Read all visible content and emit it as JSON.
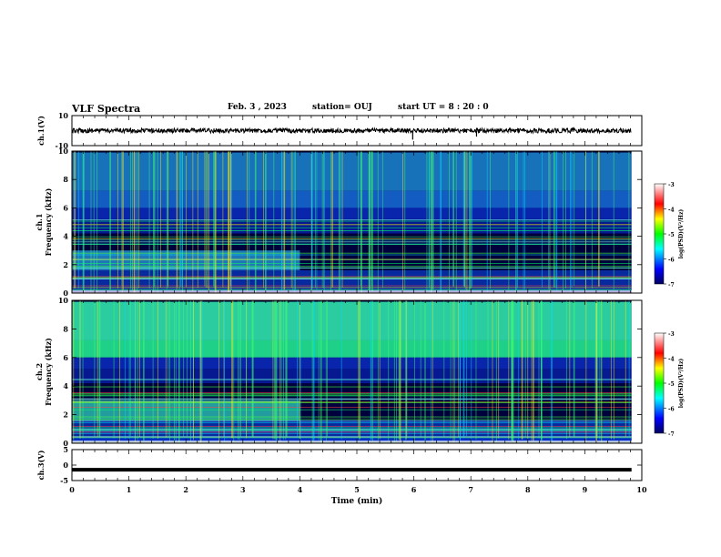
{
  "header": {
    "title": "VLF Spectra",
    "date": "Feb. 3 , 2023",
    "station": "station= OUJ",
    "start": "start UT = 8 : 20 : 0"
  },
  "chart_data": [
    {
      "type": "line",
      "title": "",
      "ylabel": "ch.1(V)",
      "ylim": [
        -10,
        10
      ],
      "yticks": [
        "10",
        "-10"
      ],
      "xlim": [
        0,
        10
      ],
      "series": [
        {
          "values_description": "",
          "baseline": 0,
          "spikes": [
            {
              "x": 5.98,
              "y": -6
            },
            {
              "x": 7.1,
              "y": -4
            }
          ]
        }
      ]
    },
    {
      "type": "heatmap",
      "ylabel": "Frequency (kHz)",
      "channel": "ch.1",
      "ylim": [
        0,
        10
      ],
      "yticks": [
        "0",
        "2",
        "4",
        "6",
        "8",
        "10"
      ],
      "xlim": [
        0,
        10
      ],
      "colorbar": {
        "label": "log(PSD)(V²/Hz)",
        "ticks": [
          "-3",
          "-4",
          "-5",
          "-6",
          "-7"
        ],
        "range": [
          -7,
          -3
        ]
      }
    },
    {
      "type": "heatmap",
      "ylabel": "Frequency (kHz)",
      "channel": "ch.2",
      "ylim": [
        0,
        10
      ],
      "yticks": [
        "0",
        "2",
        "4",
        "6",
        "8",
        "10"
      ],
      "xlim": [
        0,
        10
      ],
      "colorbar": {
        "label": "log(PSD)(V²/Hz)",
        "ticks": [
          "-3",
          "-4",
          "-5",
          "-6",
          "-7"
        ],
        "range": [
          -7,
          -3
        ]
      }
    },
    {
      "type": "line",
      "ylabel": "ch.3(V)",
      "ylim": [
        -5,
        5
      ],
      "yticks": [
        "5",
        "0",
        "-5"
      ],
      "xlim": [
        0,
        10
      ],
      "series": [
        {
          "baseline": -1.5
        }
      ]
    }
  ],
  "xaxis": {
    "label": "Time (min)",
    "ticks": [
      "0",
      "1",
      "2",
      "3",
      "4",
      "5",
      "6",
      "7",
      "8",
      "9",
      "10"
    ],
    "range": [
      0,
      10
    ]
  }
}
